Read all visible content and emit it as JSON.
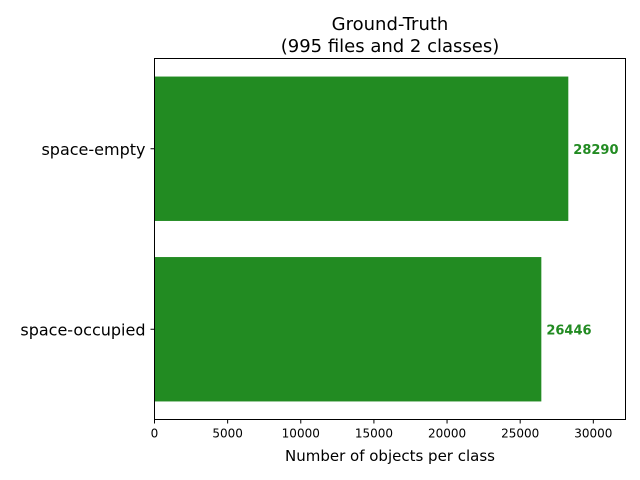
{
  "chart_data": {
    "type": "bar",
    "orientation": "horizontal",
    "title_line1": "Ground-Truth",
    "title_line2": "(995 files and 2 classes)",
    "categories": [
      "space-empty",
      "space-occupied"
    ],
    "values": [
      28290,
      26446
    ],
    "xlabel": "Number of objects per class",
    "ylabel": "",
    "xlim": [
      0,
      32200
    ],
    "xticks": [
      0,
      5000,
      10000,
      15000,
      20000,
      25000,
      30000
    ],
    "xtick_labels": [
      "0",
      "5000",
      "10000",
      "15000",
      "20000",
      "25000",
      "30000"
    ],
    "bar_color": "#228b22",
    "label_color": "#228b22",
    "grid": false,
    "legend": "none"
  }
}
